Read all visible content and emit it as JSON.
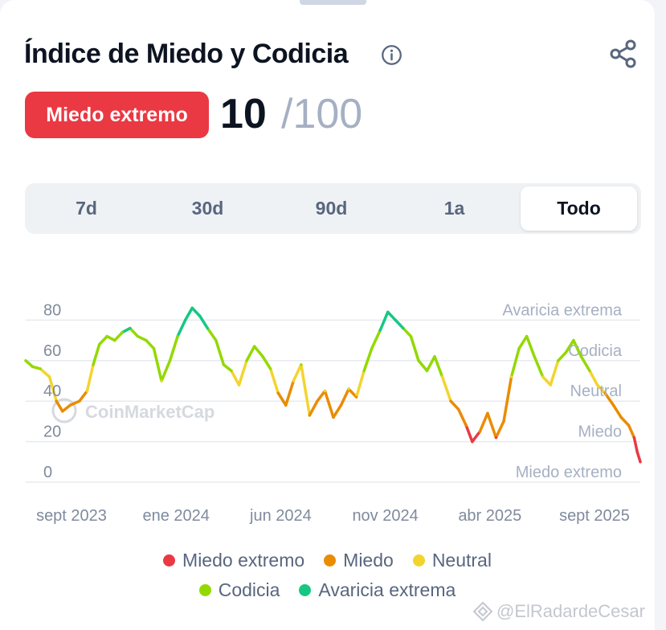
{
  "header": {
    "title": "Índice de Miedo y Codicia",
    "info_icon": "info-circle-icon",
    "share_icon": "share-icon"
  },
  "score": {
    "label": "Miedo extremo",
    "value": "10",
    "max": "/100",
    "label_color": "#ea3943"
  },
  "tabs": [
    {
      "label": "7d",
      "active": false
    },
    {
      "label": "30d",
      "active": false
    },
    {
      "label": "90d",
      "active": false
    },
    {
      "label": "1a",
      "active": false
    },
    {
      "label": "Todo",
      "active": true
    }
  ],
  "watermark": {
    "chart_brand": "CoinMarketCap",
    "image_credit": "@ElRadardeCesar"
  },
  "chart_data": {
    "type": "line",
    "title": "",
    "xlabel": "",
    "ylabel": "",
    "ylim": [
      0,
      100
    ],
    "y_ticks": [
      "0",
      "20",
      "40",
      "60",
      "80"
    ],
    "band_labels": [
      "Miedo extremo",
      "Miedo",
      "Neutral",
      "Codicia",
      "Avaricia extrema"
    ],
    "x_tick_labels": [
      "sept 2023",
      "ene 2024",
      "jun 2024",
      "nov 2024",
      "abr 2025",
      "sept 2025"
    ],
    "x_range": [
      "2023-08-01",
      "2025-10-10"
    ],
    "grid": true,
    "colors": {
      "extreme_fear": "#ea3943",
      "fear": "#ea8c00",
      "neutral": "#f3d42f",
      "greed": "#93d900",
      "extreme_greed": "#16c784"
    },
    "series": [
      {
        "points": [
          [
            "2023-08-01",
            60
          ],
          [
            "2023-08-10",
            57
          ],
          [
            "2023-08-20",
            56
          ],
          [
            "2023-09-01",
            52
          ],
          [
            "2023-09-10",
            40
          ],
          [
            "2023-09-18",
            35
          ],
          [
            "2023-09-28",
            38
          ],
          [
            "2023-10-10",
            40
          ],
          [
            "2023-10-20",
            45
          ],
          [
            "2023-10-28",
            58
          ],
          [
            "2023-11-05",
            68
          ],
          [
            "2023-11-15",
            72
          ],
          [
            "2023-11-25",
            70
          ],
          [
            "2023-12-05",
            74
          ],
          [
            "2023-12-15",
            76
          ],
          [
            "2023-12-25",
            72
          ],
          [
            "2024-01-05",
            70
          ],
          [
            "2024-01-15",
            66
          ],
          [
            "2024-01-25",
            50
          ],
          [
            "2024-02-05",
            60
          ],
          [
            "2024-02-15",
            72
          ],
          [
            "2024-02-25",
            80
          ],
          [
            "2024-03-05",
            86
          ],
          [
            "2024-03-15",
            82
          ],
          [
            "2024-03-25",
            76
          ],
          [
            "2024-04-05",
            70
          ],
          [
            "2024-04-15",
            58
          ],
          [
            "2024-04-25",
            55
          ],
          [
            "2024-05-05",
            48
          ],
          [
            "2024-05-15",
            60
          ],
          [
            "2024-05-25",
            67
          ],
          [
            "2024-06-05",
            62
          ],
          [
            "2024-06-15",
            56
          ],
          [
            "2024-06-25",
            44
          ],
          [
            "2024-07-05",
            38
          ],
          [
            "2024-07-15",
            50
          ],
          [
            "2024-07-25",
            58
          ],
          [
            "2024-08-05",
            33
          ],
          [
            "2024-08-15",
            40
          ],
          [
            "2024-08-25",
            45
          ],
          [
            "2024-09-05",
            32
          ],
          [
            "2024-09-15",
            38
          ],
          [
            "2024-09-25",
            46
          ],
          [
            "2024-10-05",
            42
          ],
          [
            "2024-10-15",
            55
          ],
          [
            "2024-10-25",
            66
          ],
          [
            "2024-11-05",
            75
          ],
          [
            "2024-11-15",
            84
          ],
          [
            "2024-11-25",
            80
          ],
          [
            "2024-12-05",
            76
          ],
          [
            "2024-12-15",
            72
          ],
          [
            "2024-12-25",
            60
          ],
          [
            "2025-01-05",
            55
          ],
          [
            "2025-01-15",
            62
          ],
          [
            "2025-01-25",
            52
          ],
          [
            "2025-02-05",
            40
          ],
          [
            "2025-02-15",
            36
          ],
          [
            "2025-02-25",
            28
          ],
          [
            "2025-03-05",
            20
          ],
          [
            "2025-03-15",
            25
          ],
          [
            "2025-03-25",
            34
          ],
          [
            "2025-04-05",
            22
          ],
          [
            "2025-04-15",
            30
          ],
          [
            "2025-04-25",
            52
          ],
          [
            "2025-05-05",
            66
          ],
          [
            "2025-05-15",
            72
          ],
          [
            "2025-05-25",
            62
          ],
          [
            "2025-06-05",
            52
          ],
          [
            "2025-06-15",
            48
          ],
          [
            "2025-06-25",
            60
          ],
          [
            "2025-07-05",
            64
          ],
          [
            "2025-07-15",
            70
          ],
          [
            "2025-07-25",
            62
          ],
          [
            "2025-08-05",
            55
          ],
          [
            "2025-08-15",
            48
          ],
          [
            "2025-08-25",
            44
          ],
          [
            "2025-09-05",
            38
          ],
          [
            "2025-09-15",
            32
          ],
          [
            "2025-09-25",
            28
          ],
          [
            "2025-10-02",
            22
          ],
          [
            "2025-10-06",
            15
          ],
          [
            "2025-10-10",
            10
          ]
        ]
      }
    ]
  },
  "legend": [
    {
      "label": "Miedo extremo",
      "color": "#ea3943"
    },
    {
      "label": "Miedo",
      "color": "#ea8c00"
    },
    {
      "label": "Neutral",
      "color": "#f3d42f"
    },
    {
      "label": "Codicia",
      "color": "#93d900"
    },
    {
      "label": "Avaricia extrema",
      "color": "#16c784"
    }
  ]
}
